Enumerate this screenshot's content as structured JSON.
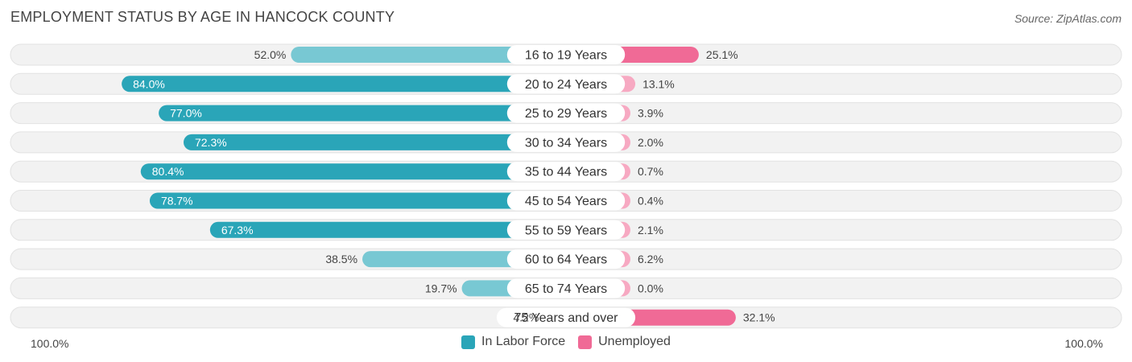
{
  "header": {
    "title": "EMPLOYMENT STATUS BY AGE IN HANCOCK COUNTY",
    "source": "Source: ZipAtlas.com"
  },
  "colors": {
    "labor_dark": "#2aa5b8",
    "labor_light": "#78c8d3",
    "unemp_dark": "#f06a96",
    "unemp_light": "#f7a9c2",
    "row_bg": "#f2f2f2"
  },
  "axis": {
    "left_label": "100.0%",
    "right_label": "100.0%"
  },
  "legend": {
    "labor": "In Labor Force",
    "unemployed": "Unemployed"
  },
  "chart_data": {
    "type": "bar",
    "title": "EMPLOYMENT STATUS BY AGE IN HANCOCK COUNTY",
    "orientation": "diverging-horizontal",
    "categories": [
      "16 to 19 Years",
      "20 to 24 Years",
      "25 to 29 Years",
      "30 to 34 Years",
      "35 to 44 Years",
      "45 to 54 Years",
      "55 to 59 Years",
      "60 to 64 Years",
      "65 to 74 Years",
      "75 Years and over"
    ],
    "series": [
      {
        "name": "In Labor Force",
        "values": [
          52.0,
          84.0,
          77.0,
          72.3,
          80.4,
          78.7,
          67.3,
          38.5,
          19.7,
          4.2
        ],
        "labels": [
          "52.0%",
          "84.0%",
          "77.0%",
          "72.3%",
          "80.4%",
          "78.7%",
          "67.3%",
          "38.5%",
          "19.7%",
          "4.2%"
        ]
      },
      {
        "name": "Unemployed",
        "values": [
          25.1,
          13.1,
          3.9,
          2.0,
          0.7,
          0.4,
          2.1,
          6.2,
          0.0,
          32.1
        ],
        "labels": [
          "25.1%",
          "13.1%",
          "3.9%",
          "2.0%",
          "0.7%",
          "0.4%",
          "2.1%",
          "6.2%",
          "0.0%",
          "32.1%"
        ]
      }
    ],
    "xlim": [
      -100,
      100
    ],
    "legend_position": "bottom-center"
  }
}
